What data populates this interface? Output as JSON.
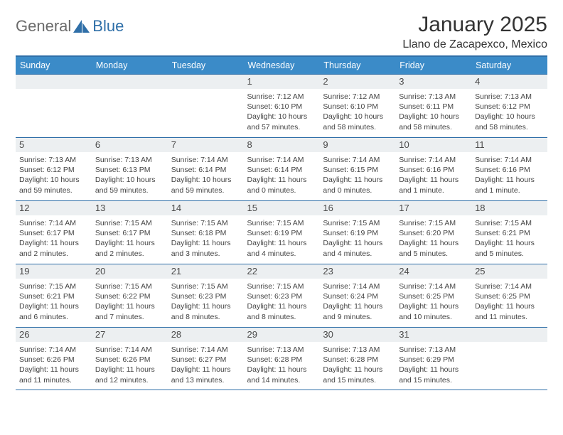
{
  "brand": {
    "text1": "General",
    "text2": "Blue"
  },
  "title": "January 2025",
  "location": "Llano de Zacapexco, Mexico",
  "colors": {
    "header_bg": "#3b8bc8",
    "header_border": "#2f6fa8",
    "daynum_bg": "#eceff1",
    "text": "#333333",
    "logo_gray": "#6b6b6b",
    "logo_blue": "#2f6fa8"
  },
  "weekdays": [
    "Sunday",
    "Monday",
    "Tuesday",
    "Wednesday",
    "Thursday",
    "Friday",
    "Saturday"
  ],
  "weeks": [
    [
      null,
      null,
      null,
      {
        "d": "1",
        "sr": "Sunrise: 7:12 AM",
        "ss": "Sunset: 6:10 PM",
        "dl1": "Daylight: 10 hours",
        "dl2": "and 57 minutes."
      },
      {
        "d": "2",
        "sr": "Sunrise: 7:12 AM",
        "ss": "Sunset: 6:10 PM",
        "dl1": "Daylight: 10 hours",
        "dl2": "and 58 minutes."
      },
      {
        "d": "3",
        "sr": "Sunrise: 7:13 AM",
        "ss": "Sunset: 6:11 PM",
        "dl1": "Daylight: 10 hours",
        "dl2": "and 58 minutes."
      },
      {
        "d": "4",
        "sr": "Sunrise: 7:13 AM",
        "ss": "Sunset: 6:12 PM",
        "dl1": "Daylight: 10 hours",
        "dl2": "and 58 minutes."
      }
    ],
    [
      {
        "d": "5",
        "sr": "Sunrise: 7:13 AM",
        "ss": "Sunset: 6:12 PM",
        "dl1": "Daylight: 10 hours",
        "dl2": "and 59 minutes."
      },
      {
        "d": "6",
        "sr": "Sunrise: 7:13 AM",
        "ss": "Sunset: 6:13 PM",
        "dl1": "Daylight: 10 hours",
        "dl2": "and 59 minutes."
      },
      {
        "d": "7",
        "sr": "Sunrise: 7:14 AM",
        "ss": "Sunset: 6:14 PM",
        "dl1": "Daylight: 10 hours",
        "dl2": "and 59 minutes."
      },
      {
        "d": "8",
        "sr": "Sunrise: 7:14 AM",
        "ss": "Sunset: 6:14 PM",
        "dl1": "Daylight: 11 hours",
        "dl2": "and 0 minutes."
      },
      {
        "d": "9",
        "sr": "Sunrise: 7:14 AM",
        "ss": "Sunset: 6:15 PM",
        "dl1": "Daylight: 11 hours",
        "dl2": "and 0 minutes."
      },
      {
        "d": "10",
        "sr": "Sunrise: 7:14 AM",
        "ss": "Sunset: 6:16 PM",
        "dl1": "Daylight: 11 hours",
        "dl2": "and 1 minute."
      },
      {
        "d": "11",
        "sr": "Sunrise: 7:14 AM",
        "ss": "Sunset: 6:16 PM",
        "dl1": "Daylight: 11 hours",
        "dl2": "and 1 minute."
      }
    ],
    [
      {
        "d": "12",
        "sr": "Sunrise: 7:14 AM",
        "ss": "Sunset: 6:17 PM",
        "dl1": "Daylight: 11 hours",
        "dl2": "and 2 minutes."
      },
      {
        "d": "13",
        "sr": "Sunrise: 7:15 AM",
        "ss": "Sunset: 6:17 PM",
        "dl1": "Daylight: 11 hours",
        "dl2": "and 2 minutes."
      },
      {
        "d": "14",
        "sr": "Sunrise: 7:15 AM",
        "ss": "Sunset: 6:18 PM",
        "dl1": "Daylight: 11 hours",
        "dl2": "and 3 minutes."
      },
      {
        "d": "15",
        "sr": "Sunrise: 7:15 AM",
        "ss": "Sunset: 6:19 PM",
        "dl1": "Daylight: 11 hours",
        "dl2": "and 4 minutes."
      },
      {
        "d": "16",
        "sr": "Sunrise: 7:15 AM",
        "ss": "Sunset: 6:19 PM",
        "dl1": "Daylight: 11 hours",
        "dl2": "and 4 minutes."
      },
      {
        "d": "17",
        "sr": "Sunrise: 7:15 AM",
        "ss": "Sunset: 6:20 PM",
        "dl1": "Daylight: 11 hours",
        "dl2": "and 5 minutes."
      },
      {
        "d": "18",
        "sr": "Sunrise: 7:15 AM",
        "ss": "Sunset: 6:21 PM",
        "dl1": "Daylight: 11 hours",
        "dl2": "and 5 minutes."
      }
    ],
    [
      {
        "d": "19",
        "sr": "Sunrise: 7:15 AM",
        "ss": "Sunset: 6:21 PM",
        "dl1": "Daylight: 11 hours",
        "dl2": "and 6 minutes."
      },
      {
        "d": "20",
        "sr": "Sunrise: 7:15 AM",
        "ss": "Sunset: 6:22 PM",
        "dl1": "Daylight: 11 hours",
        "dl2": "and 7 minutes."
      },
      {
        "d": "21",
        "sr": "Sunrise: 7:15 AM",
        "ss": "Sunset: 6:23 PM",
        "dl1": "Daylight: 11 hours",
        "dl2": "and 8 minutes."
      },
      {
        "d": "22",
        "sr": "Sunrise: 7:15 AM",
        "ss": "Sunset: 6:23 PM",
        "dl1": "Daylight: 11 hours",
        "dl2": "and 8 minutes."
      },
      {
        "d": "23",
        "sr": "Sunrise: 7:14 AM",
        "ss": "Sunset: 6:24 PM",
        "dl1": "Daylight: 11 hours",
        "dl2": "and 9 minutes."
      },
      {
        "d": "24",
        "sr": "Sunrise: 7:14 AM",
        "ss": "Sunset: 6:25 PM",
        "dl1": "Daylight: 11 hours",
        "dl2": "and 10 minutes."
      },
      {
        "d": "25",
        "sr": "Sunrise: 7:14 AM",
        "ss": "Sunset: 6:25 PM",
        "dl1": "Daylight: 11 hours",
        "dl2": "and 11 minutes."
      }
    ],
    [
      {
        "d": "26",
        "sr": "Sunrise: 7:14 AM",
        "ss": "Sunset: 6:26 PM",
        "dl1": "Daylight: 11 hours",
        "dl2": "and 11 minutes."
      },
      {
        "d": "27",
        "sr": "Sunrise: 7:14 AM",
        "ss": "Sunset: 6:26 PM",
        "dl1": "Daylight: 11 hours",
        "dl2": "and 12 minutes."
      },
      {
        "d": "28",
        "sr": "Sunrise: 7:14 AM",
        "ss": "Sunset: 6:27 PM",
        "dl1": "Daylight: 11 hours",
        "dl2": "and 13 minutes."
      },
      {
        "d": "29",
        "sr": "Sunrise: 7:13 AM",
        "ss": "Sunset: 6:28 PM",
        "dl1": "Daylight: 11 hours",
        "dl2": "and 14 minutes."
      },
      {
        "d": "30",
        "sr": "Sunrise: 7:13 AM",
        "ss": "Sunset: 6:28 PM",
        "dl1": "Daylight: 11 hours",
        "dl2": "and 15 minutes."
      },
      {
        "d": "31",
        "sr": "Sunrise: 7:13 AM",
        "ss": "Sunset: 6:29 PM",
        "dl1": "Daylight: 11 hours",
        "dl2": "and 15 minutes."
      },
      null
    ]
  ]
}
